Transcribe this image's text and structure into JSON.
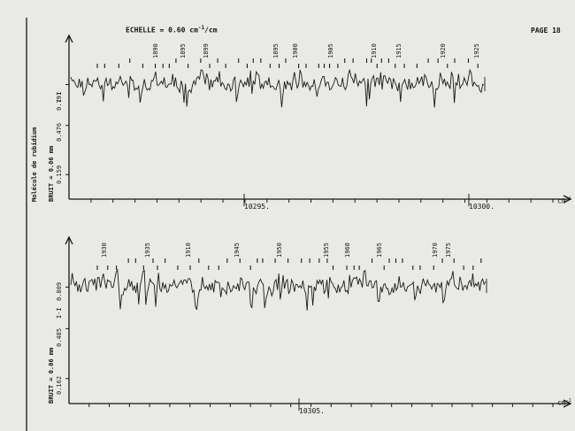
{
  "header": {
    "scale_label": "ECHELLE = 0.60 cm",
    "scale_superscript": "-1",
    "scale_unit": "/cm",
    "page_label": "PAGE 18"
  },
  "side_labels": {
    "molecule": "Molécule de rubidium"
  },
  "chart_data": [
    {
      "type": "line",
      "title": "",
      "xlabel": "cm",
      "xlabel_superscript": "-1",
      "noise_label": "BRUIT = 0.06 mm",
      "y_tick_labels": [
        "0.791",
        "0.476",
        "0.159"
      ],
      "y_marker": "I-I",
      "x_tick_labels": [
        "10295.",
        "10300."
      ],
      "line_numbers": [
        "1890",
        "1895",
        "1899",
        "1895",
        "1900",
        "1905",
        "1910",
        "1915",
        "1920",
        "1925"
      ],
      "xlim": [
        10291,
        10301
      ]
    },
    {
      "type": "line",
      "title": "",
      "xlabel": "cm",
      "xlabel_superscript": "-1",
      "noise_label": "BRUIT = 0.06 mm",
      "y_tick_labels": [
        "0.809",
        "0.485",
        "0.162"
      ],
      "y_marker": "I-I",
      "x_tick_labels": [
        "10305."
      ],
      "line_numbers": [
        "1930",
        "1935",
        "1910",
        "1945",
        "1950",
        "1955",
        "1960",
        "1965",
        "1970",
        "1975"
      ],
      "xlim": [
        10301,
        10309
      ]
    }
  ]
}
